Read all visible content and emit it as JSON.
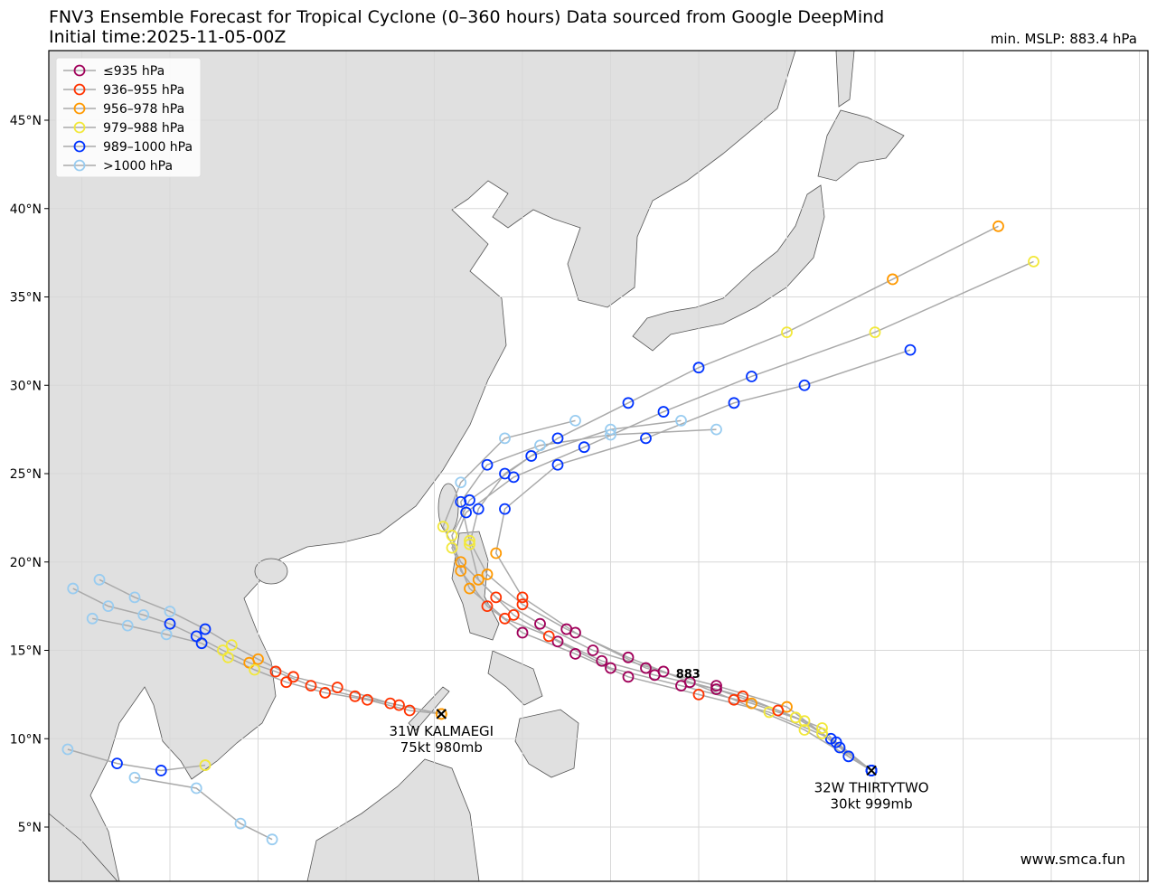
{
  "header": {
    "title": "FNV3 Ensemble Forecast for Tropical Cyclone (0–360 hours) Data sourced from Google DeepMind",
    "subtitle": "Initial time:2025-11-05-00Z",
    "min_mslp": "min. MSLP: 883.4 hPa"
  },
  "map": {
    "lat_ticks": [
      {
        "value": 5,
        "label": "5°N"
      },
      {
        "value": 10,
        "label": "10°N"
      },
      {
        "value": 15,
        "label": "15°N"
      },
      {
        "value": 20,
        "label": "20°N"
      },
      {
        "value": 25,
        "label": "25°N"
      },
      {
        "value": 30,
        "label": "30°N"
      },
      {
        "value": 35,
        "label": "35°N"
      },
      {
        "value": 40,
        "label": "40°N"
      },
      {
        "value": 45,
        "label": "45°N"
      }
    ],
    "lon_grid": [
      100,
      105,
      110,
      115,
      120,
      125,
      130,
      135,
      140,
      145,
      150,
      155,
      160
    ],
    "legend": [
      {
        "label": "≤935 hPa",
        "color": "#a0005a"
      },
      {
        "label": "936–955 hPa",
        "color": "#ff3300"
      },
      {
        "label": "956–978 hPa",
        "color": "#ff9900"
      },
      {
        "label": "979–988 hPa",
        "color": "#f2e83a"
      },
      {
        "label": "989–1000 hPa",
        "color": "#0033ff"
      },
      {
        "label": ">1000 hPa",
        "color": "#99ccf0"
      }
    ],
    "tracks": [
      {
        "points": [
          [
            144.8,
            8.2,
            4
          ],
          [
            143,
            9.5,
            4
          ],
          [
            141,
            11,
            3
          ],
          [
            138,
            12,
            2
          ],
          [
            134,
            13,
            0
          ],
          [
            130,
            14,
            0
          ],
          [
            127,
            15.5,
            0
          ],
          [
            124.5,
            17,
            1
          ],
          [
            122.5,
            19,
            2
          ],
          [
            122,
            21,
            3
          ],
          [
            122.5,
            23,
            4
          ],
          [
            124,
            25,
            4
          ],
          [
            127,
            27,
            4
          ],
          [
            131,
            29,
            4
          ],
          [
            135,
            31,
            4
          ],
          [
            140,
            33,
            3
          ],
          [
            146,
            36,
            2
          ],
          [
            152,
            39,
            2
          ]
        ]
      },
      {
        "points": [
          [
            144.8,
            8.2,
            4
          ],
          [
            142.5,
            10,
            4
          ],
          [
            139,
            11.5,
            3
          ],
          [
            135,
            12.5,
            1
          ],
          [
            131,
            13.5,
            0
          ],
          [
            128,
            14.8,
            0
          ],
          [
            125,
            16,
            0
          ],
          [
            123,
            17.5,
            1
          ],
          [
            121.5,
            19.5,
            2
          ],
          [
            121,
            21.5,
            3
          ],
          [
            122,
            23.5,
            4
          ],
          [
            125.5,
            26,
            4
          ],
          [
            130,
            27.5,
            5
          ],
          [
            134,
            28,
            5
          ]
        ]
      },
      {
        "points": [
          [
            144.8,
            8.2,
            4
          ],
          [
            142,
            10.3,
            3
          ],
          [
            140,
            11.8,
            2
          ],
          [
            136,
            13,
            0
          ],
          [
            132,
            14,
            0
          ],
          [
            128,
            16,
            0
          ],
          [
            125,
            18,
            1
          ],
          [
            123.5,
            20.5,
            2
          ],
          [
            124,
            23,
            4
          ],
          [
            127,
            25.5,
            4
          ],
          [
            132,
            27,
            4
          ],
          [
            137,
            29,
            4
          ],
          [
            141,
            30,
            4
          ],
          [
            147,
            32,
            4
          ]
        ]
      },
      {
        "points": [
          [
            144.8,
            8.2,
            4
          ],
          [
            141,
            10.5,
            3
          ],
          [
            137,
            12.2,
            1
          ],
          [
            133,
            13.8,
            0
          ],
          [
            129,
            15,
            0
          ],
          [
            126,
            16.5,
            0
          ],
          [
            123.5,
            18,
            1
          ],
          [
            121.5,
            20,
            2
          ],
          [
            120.5,
            22,
            3
          ],
          [
            121.5,
            24.5,
            5
          ],
          [
            124,
            27,
            5
          ],
          [
            128,
            28,
            5
          ]
        ]
      },
      {
        "points": [
          [
            144.8,
            8.2,
            4
          ],
          [
            143.5,
            9,
            4
          ],
          [
            142,
            10.6,
            3
          ],
          [
            139.5,
            11.6,
            1
          ],
          [
            136,
            12.8,
            0
          ],
          [
            132.5,
            13.6,
            0
          ],
          [
            129.5,
            14.4,
            0
          ],
          [
            126.5,
            15.8,
            1
          ],
          [
            124,
            16.8,
            1
          ],
          [
            122,
            18.5,
            2
          ],
          [
            121,
            20.8,
            3
          ],
          [
            121.8,
            22.8,
            4
          ],
          [
            124.5,
            24.8,
            4
          ],
          [
            128.5,
            26.5,
            4
          ],
          [
            133,
            28.5,
            4
          ],
          [
            138,
            30.5,
            4
          ],
          [
            145,
            33,
            3
          ],
          [
            154,
            37,
            3
          ]
        ]
      },
      {
        "points": [
          [
            144.8,
            8.2,
            4
          ],
          [
            142.8,
            9.8,
            4
          ],
          [
            140.5,
            11.2,
            3
          ],
          [
            137.5,
            12.4,
            1
          ],
          [
            134.5,
            13.2,
            0
          ],
          [
            131,
            14.6,
            0
          ],
          [
            127.5,
            16.2,
            0
          ],
          [
            125,
            17.6,
            1
          ],
          [
            123,
            19.3,
            2
          ],
          [
            122,
            21.2,
            3
          ],
          [
            121.5,
            23.4,
            4
          ],
          [
            123,
            25.5,
            4
          ],
          [
            126,
            26.6,
            5
          ],
          [
            130,
            27.2,
            5
          ],
          [
            136,
            27.5,
            5
          ]
        ]
      },
      {
        "points": [
          [
            120.4,
            11.4,
            2
          ],
          [
            118,
            11.9,
            1
          ],
          [
            115.5,
            12.4,
            1
          ],
          [
            113,
            13,
            1
          ],
          [
            111,
            13.8,
            1
          ],
          [
            109.5,
            14.3,
            2
          ],
          [
            108,
            15,
            3
          ],
          [
            106.5,
            15.8,
            4
          ],
          [
            105,
            16.5,
            4
          ],
          [
            103.5,
            17,
            5
          ],
          [
            101.5,
            17.5,
            5
          ],
          [
            99.5,
            18.5,
            5
          ]
        ]
      },
      {
        "points": [
          [
            120.4,
            11.4,
            2
          ],
          [
            117.5,
            12,
            1
          ],
          [
            114.5,
            12.9,
            1
          ],
          [
            112,
            13.5,
            1
          ],
          [
            110,
            14.5,
            2
          ],
          [
            108.5,
            15.3,
            3
          ],
          [
            107,
            16.2,
            4
          ],
          [
            105,
            17.2,
            5
          ],
          [
            103,
            18,
            5
          ],
          [
            101,
            19,
            5
          ]
        ]
      },
      {
        "points": [
          [
            120.4,
            11.4,
            2
          ],
          [
            118.6,
            11.6,
            1
          ],
          [
            116.2,
            12.2,
            1
          ],
          [
            113.8,
            12.6,
            1
          ],
          [
            111.6,
            13.2,
            1
          ],
          [
            109.8,
            13.9,
            3
          ],
          [
            108.3,
            14.6,
            3
          ],
          [
            106.8,
            15.4,
            4
          ],
          [
            104.8,
            15.9,
            5
          ],
          [
            102.6,
            16.4,
            5
          ],
          [
            100.6,
            16.8,
            5
          ]
        ]
      },
      {
        "points": [
          [
            107,
            8.5,
            3
          ],
          [
            104.5,
            8.2,
            4
          ],
          [
            102,
            8.6,
            4
          ],
          [
            99.2,
            9.4,
            5
          ]
        ]
      },
      {
        "points": [
          [
            103,
            7.8,
            5
          ],
          [
            106.5,
            7.2,
            5
          ],
          [
            109,
            5.2,
            5
          ],
          [
            110.8,
            4.3,
            5
          ]
        ]
      }
    ],
    "storms": [
      {
        "name": "31W KALMAEGI",
        "info": "75kt 980mb",
        "lon": 120.4,
        "lat": 11.4
      },
      {
        "name": "32W THIRTYTWO",
        "info": "30kt 999mb",
        "lon": 144.8,
        "lat": 8.2
      }
    ],
    "min_marker": {
      "label": "883",
      "lon": 134.4,
      "lat": 13.7
    },
    "credit": "www.smca.fun"
  }
}
